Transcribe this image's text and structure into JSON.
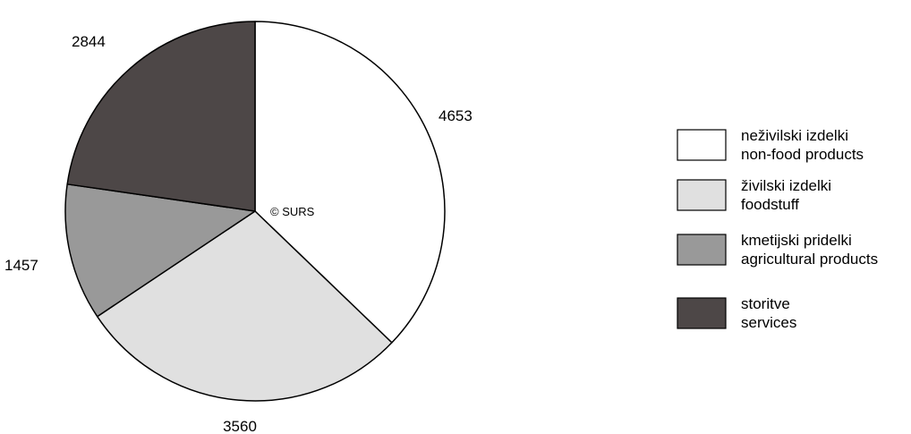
{
  "chart_data": {
    "type": "pie",
    "start_angle_deg": 0,
    "direction": "clockwise",
    "slices": [
      {
        "value": 4653,
        "label": "4653",
        "color": "#ffffff",
        "legend": [
          "neživilski izdelki",
          "non-food products"
        ]
      },
      {
        "value": 3560,
        "label": "3560",
        "color": "#e0e0e0",
        "legend": [
          "živilski izdelki",
          "foodstuff"
        ]
      },
      {
        "value": 1457,
        "label": "1457",
        "color": "#999999",
        "legend": [
          "kmetijski pridelki",
          "agricultural products"
        ]
      },
      {
        "value": 2844,
        "label": "2844",
        "color": "#4d4747",
        "legend": [
          "storitve",
          "services"
        ]
      }
    ],
    "legend_placement": "right"
  },
  "watermark": "© SURS"
}
